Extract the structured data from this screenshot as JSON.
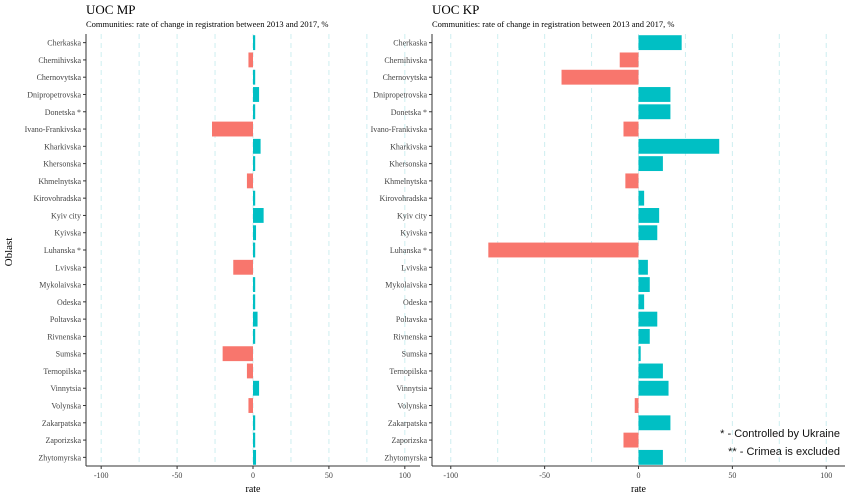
{
  "chart_data": {
    "type": "bar",
    "orientation": "horizontal",
    "ylabel": "Oblast",
    "categories": [
      "Cherkaska",
      "Chernihivska",
      "Chernovytska",
      "Dnipropetrovska",
      "Donetska *",
      "Ivano-Frankivska",
      "Kharkivska",
      "Khersonska",
      "Khmelnytska",
      "Kirovohradska",
      "Kyiv city",
      "Kyivska",
      "Luhanska *",
      "Lvivska",
      "Mykolaivska",
      "Odeska",
      "Poltavska",
      "Rivnenska",
      "Sumska",
      "Ternopilska",
      "Vinnytsia",
      "Volynska",
      "Zakarpatska",
      "Zaporizska",
      "Zhytomyrska"
    ],
    "colors": {
      "positive": "#00BFC4",
      "negative": "#F8766D",
      "grid": "#cdeef0",
      "axis": "#333333"
    },
    "panels": [
      {
        "title": "UOC MP",
        "subtitle": "Communities: rate of change in registration between 2013 and 2017, %",
        "xlabel": "rate",
        "xlim": [
          -110,
          110
        ],
        "xticks": [
          -100,
          -50,
          0,
          50,
          100
        ],
        "values": [
          1,
          -3,
          1,
          4,
          1,
          -27,
          5,
          1,
          -4,
          1,
          7,
          2,
          1,
          -13,
          1,
          1,
          3,
          1,
          -20,
          -4,
          4,
          -3,
          1,
          1,
          2
        ]
      },
      {
        "title": "UOC KP",
        "subtitle": "Communities: rate of change in registration between 2013 and 2017, %",
        "xlabel": "rate",
        "xlim": [
          -110,
          110
        ],
        "xticks": [
          -100,
          -50,
          0,
          50,
          100
        ],
        "values": [
          23,
          -10,
          -41,
          17,
          17,
          -8,
          43,
          13,
          -7,
          3,
          11,
          10,
          -80,
          5,
          6,
          3,
          10,
          6,
          0,
          13,
          16,
          -2,
          17,
          -8,
          13
        ]
      }
    ],
    "legend": {
      "notes": [
        "* - Controlled by Ukraine",
        "** - Crimea is excluded"
      ],
      "placement": "bottom-right"
    },
    "grid": true
  }
}
